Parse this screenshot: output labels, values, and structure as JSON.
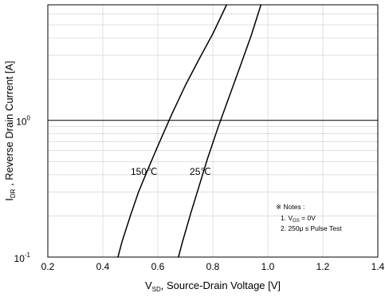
{
  "chart_data": {
    "type": "line",
    "x_axis": {
      "label_main": "V",
      "label_sub": "SD",
      "label_rest": ", Source-Drain Voltage  [V]",
      "range": [
        0.2,
        1.4
      ],
      "ticks": [
        0.2,
        0.4,
        0.6,
        0.8,
        1.0,
        1.2,
        1.4
      ],
      "tick_labels": [
        "0.2",
        "0.4",
        "0.6",
        "0.8",
        "1.0",
        "1.2",
        "1.4"
      ],
      "grid": true
    },
    "y_axis": {
      "label_main": "I",
      "label_sub": "DR",
      "label_rest": " , Reverse Drain Current  [A]",
      "scale": "log",
      "range": [
        0.1,
        7
      ],
      "ticks": [
        0.1,
        1
      ],
      "tick_labels": [
        {
          "base": "10",
          "exp": "-1"
        },
        {
          "base": "10",
          "exp": "0"
        }
      ],
      "grid": true
    },
    "series": [
      {
        "name": "150℃",
        "color": "#000000",
        "x": [
          0.455,
          0.47,
          0.5,
          0.53,
          0.56,
          0.6,
          0.65,
          0.7,
          0.75,
          0.8,
          0.85
        ],
        "y": [
          0.1,
          0.13,
          0.2,
          0.3,
          0.42,
          0.65,
          1.1,
          1.8,
          2.8,
          4.3,
          7.0
        ]
      },
      {
        "name": "25℃",
        "color": "#000000",
        "x": [
          0.675,
          0.69,
          0.72,
          0.75,
          0.78,
          0.82,
          0.86,
          0.9,
          0.94,
          0.975
        ],
        "y": [
          0.1,
          0.13,
          0.21,
          0.33,
          0.52,
          0.9,
          1.5,
          2.5,
          4.2,
          7.0
        ]
      }
    ],
    "annotations": [
      {
        "text": "150℃",
        "x": 0.55,
        "y": 0.4
      },
      {
        "text": "25℃",
        "x": 0.755,
        "y": 0.4
      }
    ],
    "notes": {
      "title": "※ Notes :",
      "line1_a": "1. V",
      "line1_sub": "GS",
      "line1_b": " = 0V",
      "line2": "2. 250μ s Pulse Test"
    }
  }
}
